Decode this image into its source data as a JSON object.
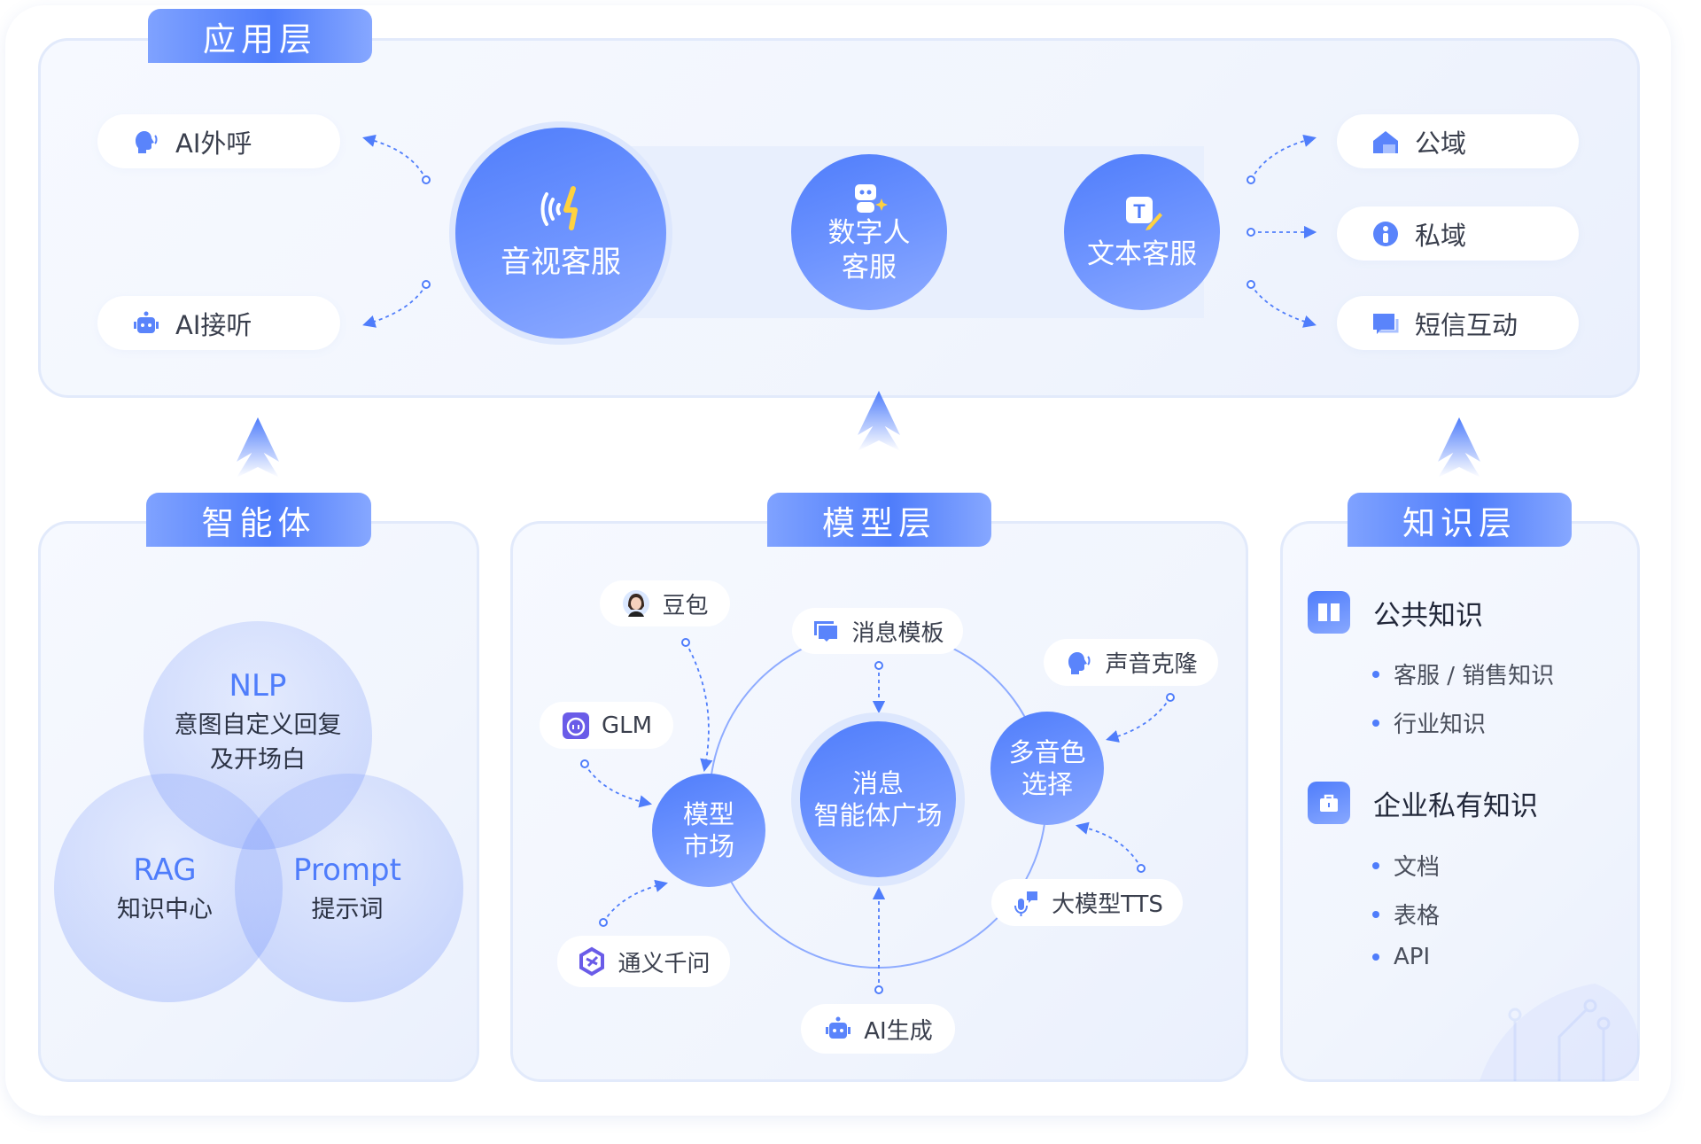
{
  "app_layer": {
    "title": "应用层",
    "left_items": [
      {
        "label": "AI外呼",
        "icon": "speaking-head-icon"
      },
      {
        "label": "AI接听",
        "icon": "robot-icon"
      }
    ],
    "circles": [
      {
        "label": "音视客服",
        "icon": "voice-signal-icon"
      },
      {
        "label_line1": "数字人",
        "label_line2": "客服",
        "icon": "digital-human-icon"
      },
      {
        "label": "文本客服",
        "icon": "text-edit-icon"
      }
    ],
    "right_items": [
      {
        "label": "公域",
        "icon": "home-icon"
      },
      {
        "label": "私域",
        "icon": "person-info-icon"
      },
      {
        "label": "短信互动",
        "icon": "chat-icon"
      }
    ]
  },
  "agent_layer": {
    "title": "智能体",
    "nlp": {
      "title": "NLP",
      "line1": "意图自定义回复",
      "line2": "及开场白"
    },
    "rag": {
      "title": "RAG",
      "line1": "知识中心"
    },
    "prompt": {
      "title": "Prompt",
      "line1": "提示词"
    }
  },
  "model_layer": {
    "title": "模型层",
    "center": {
      "line1": "消息",
      "line2": "智能体广场"
    },
    "market": {
      "line1": "模型",
      "line2": "市场"
    },
    "voice": {
      "line1": "多音色",
      "line2": "选择"
    },
    "items": [
      {
        "label": "豆包",
        "icon": "doubao-avatar-icon"
      },
      {
        "label": "消息模板",
        "icon": "message-template-icon"
      },
      {
        "label": "声音克隆",
        "icon": "speaking-head-icon"
      },
      {
        "label": "GLM",
        "icon": "glm-logo-icon"
      },
      {
        "label": "大模型TTS",
        "icon": "microphone-icon"
      },
      {
        "label": "通义千问",
        "icon": "tongyi-logo-icon"
      },
      {
        "label": "AI生成",
        "icon": "robot-icon"
      }
    ]
  },
  "knowledge_layer": {
    "title": "知识层",
    "groups": [
      {
        "title": "公共知识",
        "icon": "book-icon",
        "items": [
          "客服 / 销售知识",
          "行业知识"
        ]
      },
      {
        "title": "企业私有知识",
        "icon": "briefcase-icon",
        "items": [
          "文档",
          "表格",
          "API"
        ]
      }
    ]
  },
  "colors": {
    "accent": "#4f7dfb",
    "panel": "#f4f7fe",
    "yellow": "#ffd23f"
  }
}
